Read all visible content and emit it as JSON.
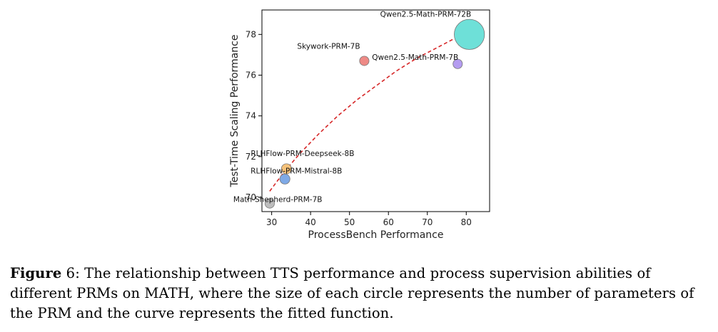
{
  "chart_data": {
    "type": "scatter",
    "xlabel": "ProcessBench Performance",
    "ylabel": "Test-Time Scaling Performance",
    "xlim": [
      27.5,
      86
    ],
    "ylim": [
      69.3,
      79.2
    ],
    "xticks": [
      30,
      40,
      50,
      60,
      70,
      80
    ],
    "yticks": [
      70,
      72,
      74,
      76,
      78
    ],
    "grid": false,
    "bubble_size_meaning": "number of parameters of the PRM",
    "points": [
      {
        "name": "Math-Shepherd-PRM-7B",
        "x": 29.5,
        "y": 69.7,
        "size": 7,
        "color": "#bdbdbd"
      },
      {
        "name": "RLHFlow-PRM-Mistral-8B",
        "x": 33.4,
        "y": 70.9,
        "size": 8,
        "color": "#7ea9e6"
      },
      {
        "name": "RLHFlow-PRM-Deepseek-8B",
        "x": 33.8,
        "y": 71.4,
        "size": 8,
        "color": "#f5c27a"
      },
      {
        "name": "Skywork-PRM-7B",
        "x": 53.8,
        "y": 76.7,
        "size": 7,
        "color": "#ee8a86"
      },
      {
        "name": "Qwen2.5-Math-PRM-7B",
        "x": 77.8,
        "y": 76.55,
        "size": 7,
        "color": "#b49cf0"
      },
      {
        "name": "Qwen2.5-Math-PRM-72B",
        "x": 80.8,
        "y": 78.0,
        "size": 72,
        "color": "#6ee0d8"
      }
    ],
    "fit_curve": {
      "style": "dashed",
      "color": "#d62728",
      "x": [
        29.5,
        33,
        37,
        42,
        47,
        52,
        57,
        62,
        67,
        72,
        77,
        81
      ],
      "y": [
        70.3,
        71.2,
        72.1,
        73.1,
        74.0,
        74.8,
        75.5,
        76.2,
        76.8,
        77.3,
        77.8,
        78.05
      ]
    }
  },
  "caption": {
    "figure_label": "Figure",
    "figure_number": "6",
    "text": ": The relationship between TTS performance and process supervision abilities of different PRMs on MATH, where the size of each circle represents the number of parameters of the PRM and the curve represents the fitted function."
  }
}
